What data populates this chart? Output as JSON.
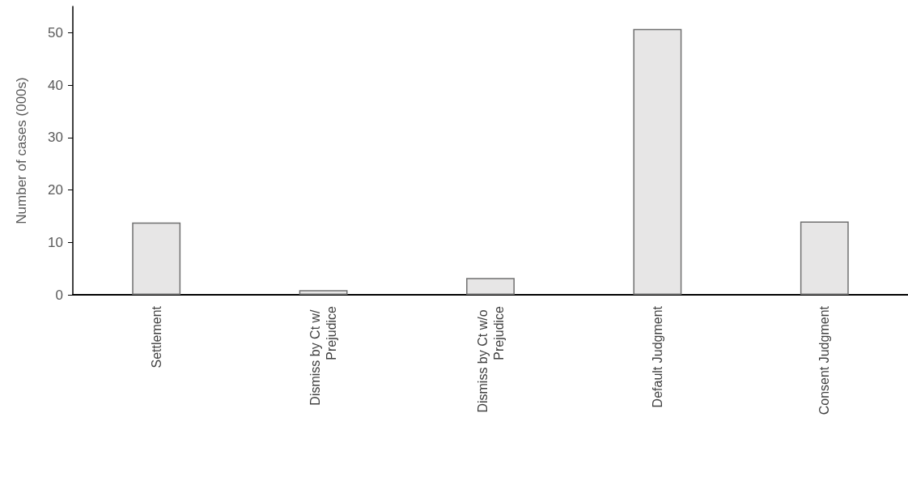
{
  "chart_data": {
    "type": "bar",
    "ylabel": "Number of cases (000s)",
    "categories": [
      "Settlement",
      "Dismiss by Ct w/ Prejudice",
      "Dismiss by Ct w/o Prejudice",
      "Default Judgment",
      "Consent Judgment"
    ],
    "values": [
      13.8,
      0.9,
      3.2,
      50.7,
      14.0
    ],
    "color": "#e7e6e6",
    "ylim": [
      0,
      55
    ],
    "yticks": [
      0,
      10,
      20,
      30,
      40,
      50
    ]
  }
}
